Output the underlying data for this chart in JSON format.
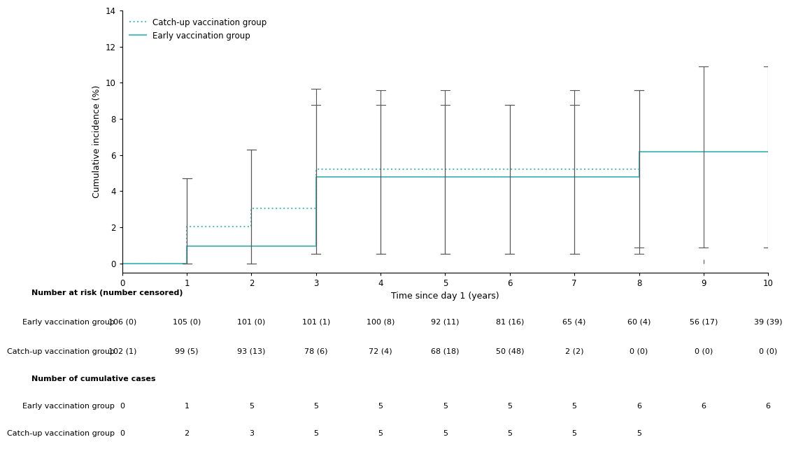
{
  "early_x": [
    0,
    1,
    1,
    2,
    2,
    3,
    3,
    4,
    4,
    5,
    5,
    6,
    6,
    7,
    7,
    8,
    8,
    9,
    9,
    10
  ],
  "early_y": [
    0,
    0,
    0.97,
    0.97,
    0.97,
    0.97,
    4.8,
    4.8,
    4.8,
    4.8,
    4.8,
    4.8,
    4.8,
    4.8,
    4.8,
    4.8,
    6.19,
    6.19,
    6.19,
    6.19
  ],
  "catchup_x": [
    0,
    1,
    1,
    2,
    2,
    3,
    3,
    4,
    4,
    5,
    5,
    6,
    6,
    7,
    7,
    8
  ],
  "catchup_y": [
    0,
    0,
    2.02,
    2.02,
    3.06,
    3.06,
    5.2,
    5.2,
    5.2,
    5.2,
    5.2,
    5.2,
    5.2,
    5.2,
    5.2,
    5.2
  ],
  "early_ci_x": [
    1,
    2,
    3,
    4,
    5,
    6,
    7,
    8,
    9,
    10
  ],
  "early_ci_low": [
    0.0,
    0.0,
    0.54,
    0.54,
    0.54,
    0.54,
    0.54,
    0.87,
    0.87,
    0.87
  ],
  "early_ci_high": [
    4.7,
    6.28,
    8.76,
    8.76,
    8.76,
    8.76,
    8.76,
    9.6,
    10.9,
    10.9
  ],
  "catchup_ci_x": [
    1,
    2,
    3,
    4,
    5,
    6,
    7,
    8
  ],
  "catchup_ci_low": [
    0.0,
    0.0,
    0.54,
    0.54,
    0.54,
    0.54,
    0.54,
    0.54
  ],
  "catchup_ci_high": [
    4.7,
    6.28,
    9.67,
    9.6,
    9.6,
    8.76,
    9.6,
    9.6
  ],
  "early_color": "#5bbcbf",
  "catchup_color": "#5bbcbf",
  "ci_color": "#555555",
  "ylabel": "Cumulative incidence (%)",
  "xlabel": "Time since day 1 (years)",
  "ylim": [
    -0.5,
    14
  ],
  "xlim": [
    0,
    10
  ],
  "yticks": [
    0,
    2,
    4,
    6,
    8,
    10,
    12,
    14
  ],
  "xticks": [
    0,
    1,
    2,
    3,
    4,
    5,
    6,
    7,
    8,
    9,
    10
  ],
  "legend_catchup": "Catch-up vaccination group",
  "legend_early": "Early vaccination group",
  "table_col_years": [
    "0",
    "1",
    "2",
    "3",
    "4",
    "5",
    "6",
    "7",
    "8",
    "9",
    "10"
  ],
  "risk_early": [
    "106 (0)",
    "105 (0)",
    "101 (0)",
    "101 (1)",
    "100 (8)",
    "92 (11)",
    "81 (16)",
    "65 (4)",
    "60 (4)",
    "56 (17)",
    "39 (39)"
  ],
  "risk_catchup": [
    "102 (1)",
    "99 (5)",
    "93 (13)",
    "78 (6)",
    "72 (4)",
    "68 (18)",
    "50 (48)",
    "2 (2)",
    "0 (0)",
    "0 (0)",
    "0 (0)"
  ],
  "cases_early": [
    "0",
    "1",
    "5",
    "5",
    "5",
    "5",
    "5",
    "5",
    "6",
    "6",
    "6"
  ],
  "cases_catchup": [
    "0",
    "2",
    "3",
    "5",
    "5",
    "5",
    "5",
    "5",
    "5",
    "",
    ""
  ]
}
